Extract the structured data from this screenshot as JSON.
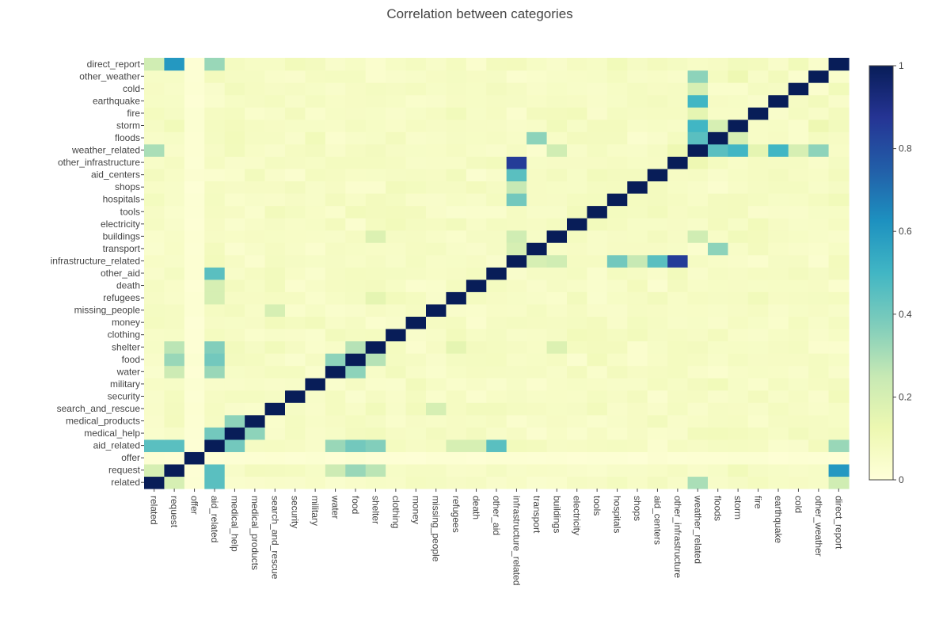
{
  "chart_data": {
    "type": "heatmap",
    "title": "Correlation between categories",
    "xlabel": "",
    "ylabel": "",
    "categories": [
      "related",
      "request",
      "offer",
      "aid_related",
      "medical_help",
      "medical_products",
      "search_and_rescue",
      "security",
      "military",
      "water",
      "food",
      "shelter",
      "clothing",
      "money",
      "missing_people",
      "refugees",
      "death",
      "other_aid",
      "infrastructure_related",
      "transport",
      "buildings",
      "electricity",
      "tools",
      "hospitals",
      "shops",
      "aid_centers",
      "other_infrastructure",
      "weather_related",
      "floods",
      "storm",
      "fire",
      "earthquake",
      "cold",
      "other_weather",
      "direct_report"
    ],
    "colorscale": "YlGnBu",
    "zrange": [
      0,
      1
    ],
    "colorbar_ticks": [
      "0",
      "0.2",
      "0.4",
      "0.6",
      "0.8",
      "1"
    ],
    "colors": {
      "low": "#ffffd9",
      "high": "#081d58"
    },
    "grid": false,
    "legend": "colorbar-right",
    "notable": [
      {
        "a": "request",
        "b": "direct_report",
        "r": 0.6
      },
      {
        "a": "related",
        "b": "aid_related",
        "r": 0.45
      },
      {
        "a": "request",
        "b": "aid_related",
        "r": 0.45
      },
      {
        "a": "aid_related",
        "b": "other_aid",
        "r": 0.45
      },
      {
        "a": "aid_related",
        "b": "medical_help",
        "r": 0.4
      },
      {
        "a": "aid_related",
        "b": "food",
        "r": 0.4
      },
      {
        "a": "aid_related",
        "b": "shelter",
        "r": 0.37
      },
      {
        "a": "aid_related",
        "b": "water",
        "r": 0.33
      },
      {
        "a": "aid_related",
        "b": "direct_report",
        "r": 0.33
      },
      {
        "a": "request",
        "b": "food",
        "r": 0.33
      },
      {
        "a": "request",
        "b": "shelter",
        "r": 0.27
      },
      {
        "a": "request",
        "b": "water",
        "r": 0.23
      },
      {
        "a": "request",
        "b": "related",
        "r": 0.2
      },
      {
        "a": "related",
        "b": "direct_report",
        "r": 0.22
      },
      {
        "a": "related",
        "b": "weather_related",
        "r": 0.3
      },
      {
        "a": "water",
        "b": "food",
        "r": 0.35
      },
      {
        "a": "food",
        "b": "shelter",
        "r": 0.28
      },
      {
        "a": "medical_help",
        "b": "medical_products",
        "r": 0.35
      },
      {
        "a": "search_and_rescue",
        "b": "missing_people",
        "r": 0.2
      },
      {
        "a": "infrastructure_related",
        "b": "other_infrastructure",
        "r": 0.85
      },
      {
        "a": "infrastructure_related",
        "b": "aid_centers",
        "r": 0.45
      },
      {
        "a": "infrastructure_related",
        "b": "hospitals",
        "r": 0.4
      },
      {
        "a": "infrastructure_related",
        "b": "shops",
        "r": 0.25
      },
      {
        "a": "infrastructure_related",
        "b": "transport",
        "r": 0.2
      },
      {
        "a": "infrastructure_related",
        "b": "buildings",
        "r": 0.22
      },
      {
        "a": "weather_related",
        "b": "earthquake",
        "r": 0.5
      },
      {
        "a": "weather_related",
        "b": "storm",
        "r": 0.5
      },
      {
        "a": "weather_related",
        "b": "floods",
        "r": 0.45
      },
      {
        "a": "weather_related",
        "b": "other_weather",
        "r": 0.35
      },
      {
        "a": "weather_related",
        "b": "cold",
        "r": 0.2
      },
      {
        "a": "weather_related",
        "b": "fire",
        "r": 0.15
      },
      {
        "a": "transport",
        "b": "floods",
        "r": 0.35
      },
      {
        "a": "floods",
        "b": "storm",
        "r": 0.2
      },
      {
        "a": "buildings",
        "b": "shelter",
        "r": 0.18
      },
      {
        "a": "buildings",
        "b": "weather_related",
        "r": 0.22
      },
      {
        "a": "other_weather",
        "b": "storm",
        "r": 0.12
      },
      {
        "a": "refugees",
        "b": "shelter",
        "r": 0.15
      },
      {
        "a": "death",
        "b": "aid_related",
        "r": 0.2
      },
      {
        "a": "refugees",
        "b": "aid_related",
        "r": 0.2
      },
      {
        "a": "other_infrastructure",
        "b": "weather_related",
        "r": 0.12
      }
    ]
  }
}
